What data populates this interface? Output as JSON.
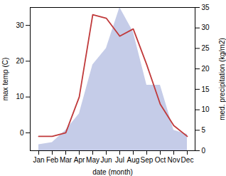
{
  "chart_data": {
    "type": "line",
    "categories": [
      "Jan",
      "Feb",
      "Mar",
      "Apr",
      "May",
      "Jun",
      "Jul",
      "Aug",
      "Sep",
      "Oct",
      "Nov",
      "Dec"
    ],
    "xlabel": "date (month)",
    "ylabel": "max temp (C)",
    "y2label": "med. precipitation (kg/m2)",
    "ylim": [
      -5,
      35
    ],
    "yticks": [
      0,
      10,
      20,
      30
    ],
    "y2lim": [
      0,
      35
    ],
    "y2ticks": [
      0,
      5,
      10,
      15,
      20,
      25,
      30,
      35
    ],
    "grid": false,
    "series": [
      {
        "type": "area",
        "axis": "y2",
        "color": "#c5cce8",
        "values": [
          1.5,
          2,
          5,
          9,
          21,
          25,
          35,
          29,
          16,
          16,
          5,
          4
        ]
      },
      {
        "type": "line",
        "color": "#c0393a",
        "values": [
          -1,
          -1,
          0,
          10,
          33,
          32,
          27,
          29,
          19,
          8,
          2,
          -1
        ]
      }
    ]
  }
}
